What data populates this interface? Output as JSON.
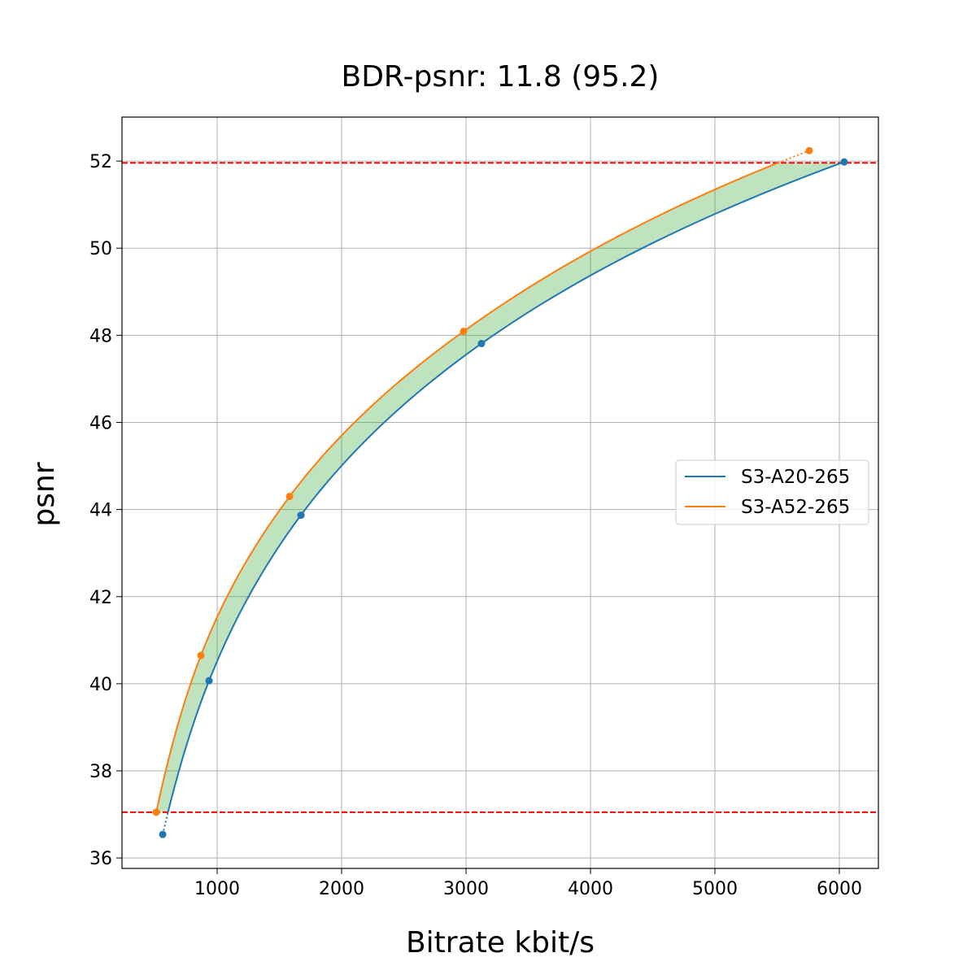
{
  "chart_data": {
    "type": "line",
    "title": "BDR-psnr: 11.8 (95.2)",
    "xlabel": "Bitrate kbit/s",
    "ylabel": "psnr",
    "xlim": [
      235,
      6314
    ],
    "ylim": [
      35.76,
      53.01
    ],
    "xticks": [
      1000,
      2000,
      3000,
      4000,
      5000,
      6000
    ],
    "yticks": [
      36,
      38,
      40,
      42,
      44,
      46,
      48,
      50,
      52
    ],
    "grid": true,
    "legend_position": "center-right",
    "series": [
      {
        "name": "S3-A20-265",
        "color": "#1f77b4",
        "x": [
          562,
          935,
          1673,
          3124,
          6039
        ],
        "y": [
          36.54,
          40.07,
          43.87,
          47.81,
          51.98
        ]
      },
      {
        "name": "S3-A52-265",
        "color": "#ff7f0e",
        "x": [
          510,
          869,
          1582,
          2980,
          5758
        ],
        "y": [
          37.05,
          40.65,
          44.3,
          48.09,
          52.24
        ]
      }
    ],
    "hlines": [
      {
        "y": 51.96,
        "color": "#ff0000",
        "style": "dashed"
      },
      {
        "y": 37.05,
        "color": "#ff0000",
        "style": "dashed"
      }
    ],
    "fill_between_color": "#2ca02c"
  }
}
